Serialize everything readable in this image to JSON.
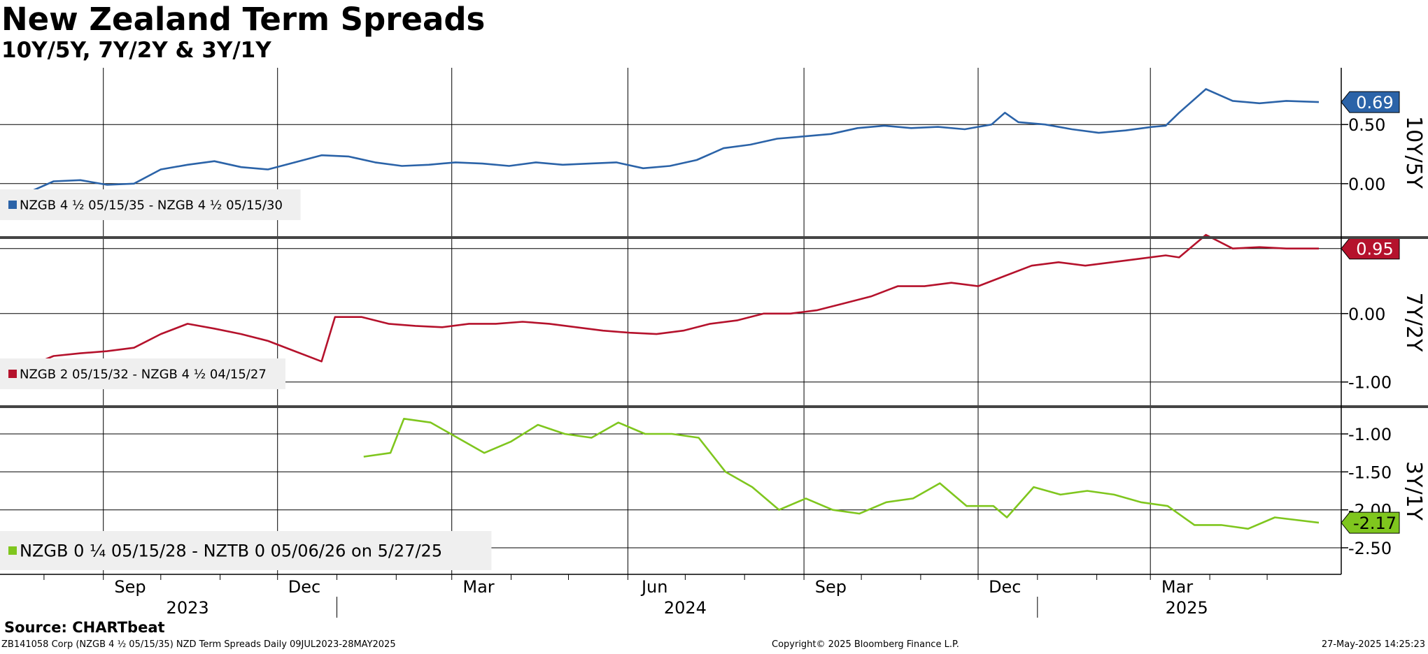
{
  "title": "New Zealand Term Spreads",
  "subtitle": "10Y/5Y, 7Y/2Y & 3Y/1Y",
  "source": "Source: CHARTbeat",
  "footer": {
    "left": "ZB141058 Corp (NZGB 4 ½ 05/15/35) NZD Term Spreads  Daily 09JUL2023-28MAY2025",
    "center": "Copyright© 2025 Bloomberg Finance L.P.",
    "right": "27-May-2025 14:25:23"
  },
  "colors": {
    "blue": "#2b63a8",
    "red": "#b5122c",
    "green": "#7fc61e",
    "axis": "#000000"
  },
  "chart_data": {
    "type": "line",
    "x_axis": {
      "start": "2023-07-09",
      "end": "2025-05-28",
      "month_ticks": [
        "2023-08",
        "2023-09",
        "2023-10",
        "2023-11",
        "2023-12",
        "2024-01",
        "2024-02",
        "2024-03",
        "2024-04",
        "2024-05",
        "2024-06",
        "2024-07",
        "2024-08",
        "2024-09",
        "2024-10",
        "2024-11",
        "2024-12",
        "2025-01",
        "2025-02",
        "2025-03",
        "2025-04",
        "2025-05"
      ],
      "gridlines": [
        "2023-09-01",
        "2023-12-01",
        "2024-03-01",
        "2024-06-01",
        "2024-09-01",
        "2024-12-01",
        "2025-03-01"
      ],
      "quarter_labels": [
        {
          "date": "2023-09-15",
          "label": "Sep"
        },
        {
          "date": "2023-12-15",
          "label": "Dec"
        },
        {
          "date": "2024-03-15",
          "label": "Mar"
        },
        {
          "date": "2024-06-15",
          "label": "Jun"
        },
        {
          "date": "2024-09-15",
          "label": "Sep"
        },
        {
          "date": "2024-12-15",
          "label": "Dec"
        },
        {
          "date": "2025-03-15",
          "label": "Mar"
        }
      ],
      "year_dividers": [
        "2024-01-01",
        "2025-01-01"
      ],
      "year_labels": [
        {
          "date": "2023-10-15",
          "label": "2023"
        },
        {
          "date": "2024-07-01",
          "label": "2024"
        },
        {
          "date": "2025-03-20",
          "label": "2025"
        }
      ]
    },
    "panels": [
      {
        "axis_title": "10Y/5Y",
        "ylim": [
          -0.45,
          0.98
        ],
        "yticks": [
          0.0,
          0.5
        ],
        "ytick_labels": [
          "0.00",
          "0.50"
        ],
        "gridlines": [
          0.0,
          0.5
        ],
        "color": "#2b63a8",
        "last_value_label": "0.69",
        "last_value": 0.69,
        "legend": "NZGB 4 ½ 05/15/35 - NZGB 4 ½ 05/15/30",
        "series": {
          "name": "NZGB 4 ½ 05/15/35 - NZGB 4 ½ 05/15/30",
          "x": [
            "2023-07-09",
            "2023-07-23",
            "2023-08-06",
            "2023-08-20",
            "2023-09-03",
            "2023-09-17",
            "2023-10-01",
            "2023-10-15",
            "2023-10-29",
            "2023-11-12",
            "2023-11-26",
            "2023-12-10",
            "2023-12-24",
            "2024-01-07",
            "2024-01-21",
            "2024-02-04",
            "2024-02-18",
            "2024-03-03",
            "2024-03-17",
            "2024-03-31",
            "2024-04-14",
            "2024-04-28",
            "2024-05-12",
            "2024-05-26",
            "2024-06-09",
            "2024-06-23",
            "2024-07-07",
            "2024-07-21",
            "2024-08-04",
            "2024-08-18",
            "2024-09-01",
            "2024-09-15",
            "2024-09-29",
            "2024-10-13",
            "2024-10-27",
            "2024-11-10",
            "2024-11-24",
            "2024-12-08",
            "2024-12-15",
            "2024-12-22",
            "2025-01-05",
            "2025-01-19",
            "2025-02-02",
            "2025-02-16",
            "2025-03-02",
            "2025-03-09",
            "2025-03-16",
            "2025-03-30",
            "2025-04-13",
            "2025-04-27",
            "2025-05-11",
            "2025-05-28"
          ],
          "y": [
            -0.06,
            -0.08,
            0.02,
            0.03,
            -0.01,
            0.0,
            0.12,
            0.16,
            0.19,
            0.14,
            0.12,
            0.18,
            0.24,
            0.23,
            0.18,
            0.15,
            0.16,
            0.18,
            0.17,
            0.15,
            0.18,
            0.16,
            0.17,
            0.18,
            0.13,
            0.15,
            0.2,
            0.3,
            0.33,
            0.38,
            0.4,
            0.42,
            0.47,
            0.49,
            0.47,
            0.48,
            0.46,
            0.5,
            0.6,
            0.52,
            0.5,
            0.46,
            0.43,
            0.45,
            0.48,
            0.49,
            0.6,
            0.8,
            0.7,
            0.68,
            0.7,
            0.69
          ]
        }
      },
      {
        "axis_title": "7Y/2Y",
        "ylim": [
          -1.35,
          1.1
        ],
        "yticks": [
          -1.0,
          0.0
        ],
        "ytick_labels": [
          "-1.00",
          "0.00"
        ],
        "gridlines": [
          -1.0,
          0.0,
          0.95
        ],
        "color": "#b5122c",
        "last_value_label": "0.95",
        "last_value": 0.95,
        "legend": "NZGB 2 05/15/32 - NZGB 4 ½ 04/15/27",
        "series": {
          "name": "NZGB 2 05/15/32 - NZGB 4 ½ 04/15/27",
          "x": [
            "2023-07-09",
            "2023-07-23",
            "2023-08-06",
            "2023-08-20",
            "2023-09-03",
            "2023-09-17",
            "2023-10-01",
            "2023-10-15",
            "2023-10-29",
            "2023-11-12",
            "2023-11-26",
            "2023-12-10",
            "2023-12-24",
            "2023-12-31",
            "2024-01-14",
            "2024-01-28",
            "2024-02-11",
            "2024-02-25",
            "2024-03-10",
            "2024-03-24",
            "2024-04-07",
            "2024-04-21",
            "2024-05-05",
            "2024-05-19",
            "2024-06-02",
            "2024-06-16",
            "2024-06-30",
            "2024-07-14",
            "2024-07-28",
            "2024-08-11",
            "2024-08-25",
            "2024-09-08",
            "2024-09-22",
            "2024-10-06",
            "2024-10-20",
            "2024-11-03",
            "2024-11-17",
            "2024-12-01",
            "2024-12-15",
            "2024-12-29",
            "2025-01-12",
            "2025-01-26",
            "2025-02-09",
            "2025-02-23",
            "2025-03-09",
            "2025-03-16",
            "2025-03-30",
            "2025-04-13",
            "2025-04-27",
            "2025-05-11",
            "2025-05-28"
          ],
          "y": [
            -0.7,
            -0.78,
            -0.62,
            -0.58,
            -0.55,
            -0.5,
            -0.3,
            -0.15,
            -0.22,
            -0.3,
            -0.4,
            -0.55,
            -0.7,
            -0.05,
            -0.05,
            -0.15,
            -0.18,
            -0.2,
            -0.15,
            -0.15,
            -0.12,
            -0.15,
            -0.2,
            -0.25,
            -0.28,
            -0.3,
            -0.25,
            -0.15,
            -0.1,
            0.0,
            0.0,
            0.05,
            0.15,
            0.25,
            0.4,
            0.4,
            0.45,
            0.4,
            0.55,
            0.7,
            0.75,
            0.7,
            0.75,
            0.8,
            0.85,
            0.82,
            1.15,
            0.95,
            0.97,
            0.95,
            0.95
          ]
        }
      },
      {
        "axis_title": "3Y/1Y",
        "ylim": [
          -2.85,
          -0.65
        ],
        "yticks": [
          -2.5,
          -2.0,
          -1.5,
          -1.0
        ],
        "ytick_labels": [
          "-2.50",
          "-2.00",
          "-1.50",
          "-1.00"
        ],
        "gridlines": [
          -2.5,
          -2.0,
          -1.5,
          -1.0
        ],
        "color": "#7fc61e",
        "last_value_label": "-2.17",
        "last_value": -2.17,
        "legend": "NZGB 0 ¼ 05/15/28 - NZTB 0 05/06/26 on 5/27/25",
        "series": {
          "name": "NZGB 0 ¼ 05/15/28 - NZTB 0 05/06/26 on 5/27/25",
          "x": [
            "2024-01-15",
            "2024-01-29",
            "2024-02-05",
            "2024-02-19",
            "2024-03-04",
            "2024-03-18",
            "2024-04-01",
            "2024-04-15",
            "2024-04-29",
            "2024-05-13",
            "2024-05-27",
            "2024-06-10",
            "2024-06-24",
            "2024-07-08",
            "2024-07-22",
            "2024-08-05",
            "2024-08-19",
            "2024-09-02",
            "2024-09-16",
            "2024-09-30",
            "2024-10-14",
            "2024-10-28",
            "2024-11-11",
            "2024-11-25",
            "2024-12-09",
            "2024-12-16",
            "2024-12-30",
            "2025-01-13",
            "2025-01-27",
            "2025-02-10",
            "2025-02-24",
            "2025-03-10",
            "2025-03-24",
            "2025-04-07",
            "2025-04-21",
            "2025-05-05",
            "2025-05-28"
          ],
          "y": [
            -1.3,
            -1.25,
            -0.8,
            -0.85,
            -1.05,
            -1.25,
            -1.1,
            -0.88,
            -1.0,
            -1.05,
            -0.85,
            -1.0,
            -1.0,
            -1.05,
            -1.5,
            -1.7,
            -2.0,
            -1.85,
            -2.0,
            -2.05,
            -1.9,
            -1.85,
            -1.65,
            -1.95,
            -1.95,
            -2.1,
            -1.7,
            -1.8,
            -1.75,
            -1.8,
            -1.9,
            -1.95,
            -2.2,
            -2.2,
            -2.25,
            -2.1,
            -2.17
          ]
        }
      }
    ]
  }
}
